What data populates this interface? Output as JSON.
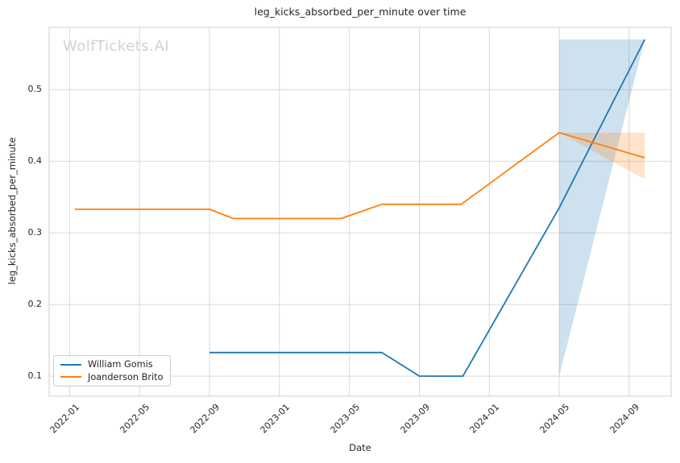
{
  "watermark": "WolfTickets.AI",
  "colors": {
    "text": "#262626",
    "grid": "#d9d9d9",
    "spine": "#cccccc",
    "watermark": "#d2d2d2",
    "background": "#ffffff",
    "series_blue": "#1f77b4",
    "series_orange": "#ff7f0e"
  },
  "chart_data": {
    "type": "line",
    "title": "leg_kicks_absorbed_per_minute over time",
    "xlabel": "Date",
    "ylabel": "leg_kicks_absorbed_per_minute",
    "grid": true,
    "legend_position": "lower left",
    "x_ticks": [
      "2022-01",
      "2022-05",
      "2022-09",
      "2023-01",
      "2023-05",
      "2023-09",
      "2024-01",
      "2024-05",
      "2024-09"
    ],
    "y_ticks": [
      0.1,
      0.2,
      0.3,
      0.4,
      0.5
    ],
    "xlim_months_since_2022_01": [
      -1.17,
      34.4
    ],
    "ylim": [
      0.072,
      0.587
    ],
    "series": [
      {
        "name": "William Gomis",
        "color": "#1f77b4",
        "points": [
          [
            "2022-09-01",
            0.133
          ],
          [
            "2023-06-27",
            0.133
          ],
          [
            "2023-09-01",
            0.1
          ],
          [
            "2023-11-16",
            0.1
          ],
          [
            "2024-05-01",
            0.335
          ],
          [
            "2024-09-28",
            0.57
          ]
        ],
        "confidence_band": [
          [
            "2024-05-01",
            0.1,
            0.57
          ],
          [
            "2024-09-28",
            0.57,
            0.57
          ]
        ]
      },
      {
        "name": "Joanderson Brito",
        "color": "#ff7f0e",
        "points": [
          [
            "2022-01-10",
            0.333
          ],
          [
            "2022-09-01",
            0.333
          ],
          [
            "2022-10-12",
            0.32
          ],
          [
            "2023-04-17",
            0.32
          ],
          [
            "2023-06-27",
            0.34
          ],
          [
            "2023-11-13",
            0.34
          ],
          [
            "2024-05-01",
            0.44
          ],
          [
            "2024-09-28",
            0.405
          ]
        ],
        "confidence_band": [
          [
            "2024-05-01",
            0.44,
            0.44
          ],
          [
            "2024-09-28",
            0.375,
            0.44
          ]
        ]
      }
    ]
  }
}
